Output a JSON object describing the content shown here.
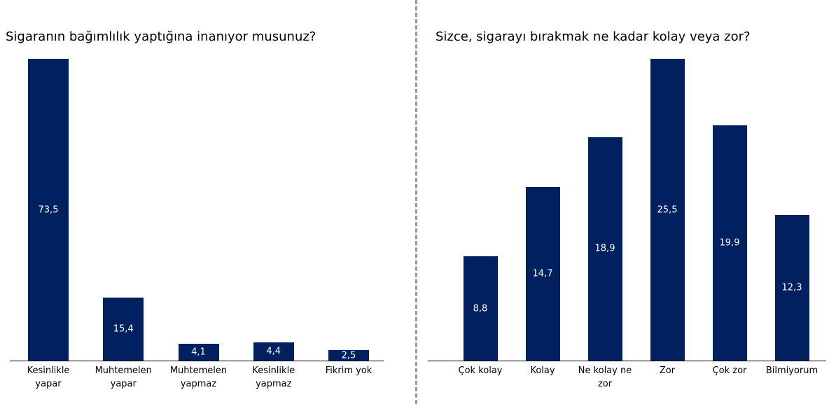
{
  "chart_data": [
    {
      "type": "bar",
      "title": "Sigaranın bağımlılık yaptığına inanıyor musunuz?",
      "categories": [
        "Kesinlikle yapar",
        "Muhtemelen yapar",
        "Muhtemelen yapmaz",
        "Kesinlikle yapmaz",
        "Fikrim yok"
      ],
      "values": [
        73.5,
        15.4,
        4.1,
        4.4,
        2.5
      ],
      "value_labels": [
        "73,5",
        "15,4",
        "4,1",
        "4,4",
        "2,5"
      ],
      "color": "#002060"
    },
    {
      "type": "bar",
      "title": "Sizce, sigarayı bırakmak ne kadar kolay veya zor?",
      "categories": [
        "Çok kolay",
        "Kolay",
        "Ne kolay ne zor",
        "Zor",
        "Çok zor",
        "Bilmiyorum"
      ],
      "values": [
        8.8,
        14.7,
        18.9,
        25.5,
        19.9,
        12.3
      ],
      "value_labels": [
        "8,8",
        "14,7",
        "18,9",
        "25,5",
        "19,9",
        "12,3"
      ],
      "color": "#002060"
    }
  ]
}
